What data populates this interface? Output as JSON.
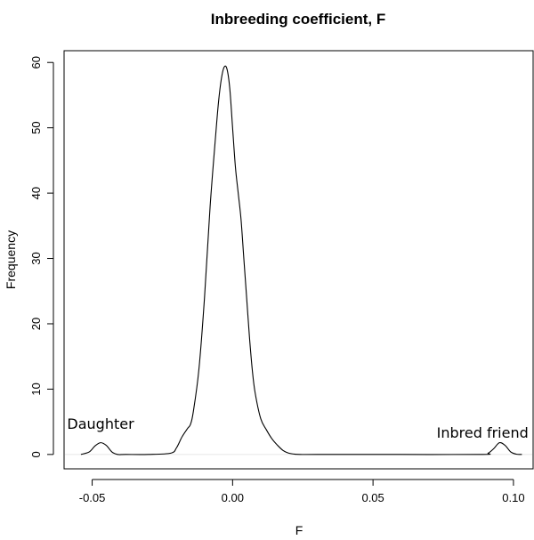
{
  "chart_data": {
    "type": "line",
    "title": "Inbreeding coefficient, F",
    "xlabel": "F",
    "ylabel": "Frequency",
    "xlim": [
      -0.06,
      0.107
    ],
    "ylim": [
      -2.2,
      61.8
    ],
    "x_ticks": [
      -0.05,
      0.0,
      0.05,
      0.1
    ],
    "x_tick_labels": [
      "-0.05",
      "0.00",
      "0.05",
      "0.10"
    ],
    "y_ticks": [
      0,
      10,
      20,
      30,
      40,
      50,
      60
    ],
    "y_tick_labels": [
      "0",
      "10",
      "20",
      "30",
      "40",
      "50",
      "60"
    ],
    "grid": false,
    "baseline": 0,
    "series": [
      {
        "x": [
          -0.054,
          -0.051,
          -0.049,
          -0.047,
          -0.045,
          -0.043,
          -0.041,
          -0.038,
          -0.03,
          -0.022,
          -0.02,
          -0.018,
          -0.016,
          -0.015,
          -0.014,
          -0.012,
          -0.01,
          -0.008,
          -0.006,
          -0.005,
          -0.004,
          -0.003,
          -0.002,
          -0.001,
          0.0,
          0.001,
          0.002,
          0.003,
          0.004,
          0.005,
          0.006,
          0.007,
          0.008,
          0.01,
          0.012,
          0.014,
          0.016,
          0.018,
          0.02,
          0.022,
          0.024,
          0.03,
          0.06,
          0.089,
          0.091,
          0.093,
          0.095,
          0.097,
          0.099,
          0.101,
          0.103
        ],
        "y": [
          0.0,
          0.4,
          1.3,
          1.8,
          1.4,
          0.4,
          0.0,
          0.0,
          0.0,
          0.2,
          1.0,
          2.7,
          4.0,
          4.6,
          6.5,
          13.0,
          24.0,
          38.0,
          49.0,
          54.0,
          57.5,
          59.3,
          59.0,
          56.0,
          50.0,
          44.0,
          40.0,
          36.0,
          30.0,
          24.0,
          18.0,
          13.0,
          9.5,
          5.5,
          3.8,
          2.4,
          1.4,
          0.6,
          0.2,
          0.05,
          0.0,
          0.0,
          0.0,
          0.0,
          0.2,
          0.9,
          1.8,
          1.4,
          0.4,
          0.05,
          0.0
        ]
      }
    ],
    "annotations": [
      {
        "text": "Daughter",
        "x": -0.047,
        "y": 3.9
      },
      {
        "text": "Inbred friend",
        "x": 0.089,
        "y": 2.6
      }
    ],
    "colors": {
      "line": "#000000",
      "baseline": "#e6e6e6",
      "axis": "#000000",
      "background": "#ffffff"
    }
  }
}
